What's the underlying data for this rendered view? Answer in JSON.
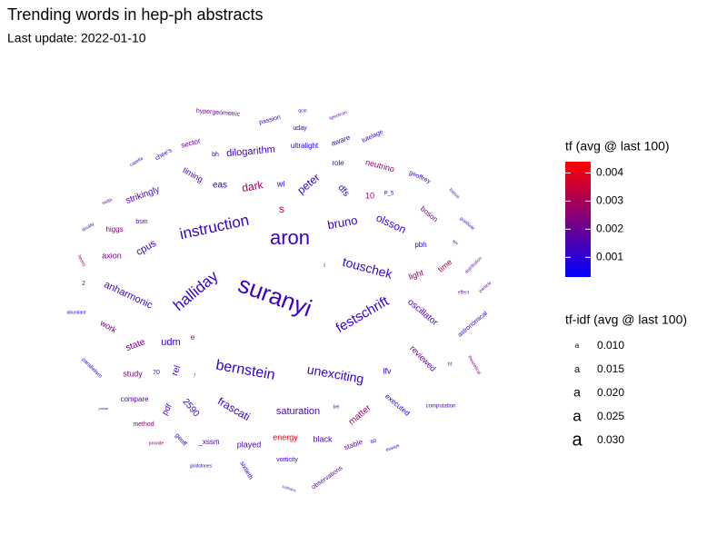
{
  "chart_data": {
    "type": "wordcloud",
    "title": "Trending words in hep-ph abstracts",
    "subtitle": "Last update: 2022-01-10",
    "color_legend": {
      "title": "tf (avg @ last 100)",
      "lim": [
        0.0003,
        0.0044
      ],
      "ticks": [
        0.001,
        0.002,
        0.003,
        0.004
      ],
      "low": "#0000ff",
      "high": "#ff0000"
    },
    "size_legend": {
      "title": "tf-idf (avg @ last 100)",
      "glyph": "a",
      "values": [
        {
          "value": 0.01,
          "label": "0.010"
        },
        0.015,
        {
          "value": 0.02,
          "label": "0.020"
        },
        0.025,
        {
          "value": 0.03,
          "label": "0.030"
        }
      ]
    },
    "words": [
      {
        "text": "hypergeometric",
        "tf": 0.002,
        "tfidf": 0.0083
      },
      {
        "text": "passion",
        "tf": 0.0012,
        "tfidf": 0.0083
      },
      {
        "text": "qcm",
        "tf": 0.001,
        "tfidf": 0.005
      },
      {
        "text": "spectrum",
        "tf": 0.0018,
        "tfidf": 0.005
      },
      {
        "text": "uday",
        "tf": 0.0008,
        "tfidf": 0.0083
      },
      {
        "text": "ultralight",
        "tf": 0.0008,
        "tfidf": 0.01
      },
      {
        "text": "aware",
        "tf": 0.0012,
        "tfidf": 0.01
      },
      {
        "text": "tutelage",
        "tf": 0.0012,
        "tfidf": 0.0083
      },
      {
        "text": "sector",
        "tf": 0.002,
        "tfidf": 0.01
      },
      {
        "text": "bh",
        "tf": 0.0015,
        "tfidf": 0.0083
      },
      {
        "text": "dilogarithm",
        "tf": 0.0012,
        "tfidf": 0.015
      },
      {
        "text": "chee's",
        "tf": 0.0012,
        "tfidf": 0.0083
      },
      {
        "text": "capella",
        "tf": 0.0012,
        "tfidf": 0.005
      },
      {
        "text": "role",
        "tf": 0.0015,
        "tfidf": 0.01
      },
      {
        "text": "neutrino",
        "tf": 0.0025,
        "tfidf": 0.0117
      },
      {
        "text": "geoffrey",
        "tf": 0.0012,
        "tfidf": 0.0083
      },
      {
        "text": "timing",
        "tf": 0.0015,
        "tfidf": 0.0117
      },
      {
        "text": "eas",
        "tf": 0.0008,
        "tfidf": 0.0133
      },
      {
        "text": "dark",
        "tf": 0.0028,
        "tfidf": 0.0167
      },
      {
        "text": "wl",
        "tf": 0.0008,
        "tfidf": 0.0117
      },
      {
        "text": "peter",
        "tf": 0.0012,
        "tfidf": 0.0167
      },
      {
        "text": "dfs",
        "tf": 0.0012,
        "tfidf": 0.0133
      },
      {
        "text": "10",
        "tf": 0.0028,
        "tfidf": 0.0117
      },
      {
        "text": "P_5",
        "tf": 0.0008,
        "tfidf": 0.0067
      },
      {
        "text": "bonus",
        "tf": 0.0012,
        "tfidf": 0.005
      },
      {
        "text": "strikingly",
        "tf": 0.0015,
        "tfidf": 0.0133
      },
      {
        "text": "width",
        "tf": 0.0018,
        "tfidf": 0.005
      },
      {
        "text": "s",
        "tf": 0.0035,
        "tfidf": 0.0167
      },
      {
        "text": "boson",
        "tf": 0.002,
        "tfidf": 0.01
      },
      {
        "text": "gratitude",
        "tf": 0.0012,
        "tfidf": 0.005
      },
      {
        "text": "doubly",
        "tf": 0.0015,
        "tfidf": 0.005
      },
      {
        "text": "higgs",
        "tf": 0.0025,
        "tfidf": 0.01
      },
      {
        "text": "bsm",
        "tf": 0.0015,
        "tfidf": 0.0083
      },
      {
        "text": "instruction",
        "tf": 0.0012,
        "tfidf": 0.025
      },
      {
        "text": "aron",
        "tf": 0.0012,
        "tfidf": 0.0333
      },
      {
        "text": "bruno",
        "tf": 0.0012,
        "tfidf": 0.0183
      },
      {
        "text": "olsson",
        "tf": 0.0012,
        "tfidf": 0.0167
      },
      {
        "text": "tev",
        "tf": 0.0018,
        "tfidf": 0.005
      },
      {
        "text": "cpus",
        "tf": 0.0012,
        "tfidf": 0.015
      },
      {
        "text": "axion",
        "tf": 0.0022,
        "tfidf": 0.0117
      },
      {
        "text": "pbh",
        "tf": 0.0012,
        "tfidf": 0.01
      },
      {
        "text": "heavy",
        "tf": 0.0025,
        "tfidf": 0.005
      },
      {
        "text": "time",
        "tf": 0.003,
        "tfidf": 0.0117
      },
      {
        "text": "distribution",
        "tf": 0.0018,
        "tfidf": 0.005
      },
      {
        "text": "i",
        "tf": 0.0025,
        "tfidf": 0.0083
      },
      {
        "text": "touschek",
        "tf": 0.0012,
        "tfidf": 0.02
      },
      {
        "text": "light",
        "tf": 0.0025,
        "tfidf": 0.0117
      },
      {
        "text": "effect",
        "tf": 0.0018,
        "tfidf": 0.005
      },
      {
        "text": "particle",
        "tf": 0.0018,
        "tfidf": 0.005
      },
      {
        "text": "2",
        "tf": 0.0025,
        "tfidf": 0.0083
      },
      {
        "text": "halliday",
        "tf": 0.0012,
        "tfidf": 0.025
      },
      {
        "text": "suranyi",
        "tf": 0.0012,
        "tfidf": 0.04
      },
      {
        "text": "anharmonic",
        "tf": 0.0012,
        "tfidf": 0.015
      },
      {
        "text": "abundant",
        "tf": 0.0008,
        "tfidf": 0.005
      },
      {
        "text": "festschrift",
        "tf": 0.0012,
        "tfidf": 0.0217
      },
      {
        "text": "oscillator",
        "tf": 0.0015,
        "tfidf": 0.0133
      },
      {
        "text": "astronomical",
        "tf": 0.0012,
        "tfidf": 0.0083
      },
      {
        "text": "work",
        "tf": 0.0022,
        "tfidf": 0.0117
      },
      {
        "text": "e",
        "tf": 0.0025,
        "tfidf": 0.01
      },
      {
        "text": "udm",
        "tf": 0.0012,
        "tfidf": 0.015
      },
      {
        "text": "state",
        "tf": 0.0022,
        "tfidf": 0.0133
      },
      {
        "text": "reviewed",
        "tf": 0.0018,
        "tfidf": 0.0117
      },
      {
        "text": "parallelism",
        "tf": 0.0008,
        "tfidf": 0.0067
      },
      {
        "text": "bernstein",
        "tf": 0.0012,
        "tfidf": 0.0233
      },
      {
        "text": "unexciting",
        "tf": 0.0012,
        "tfidf": 0.02
      },
      {
        "text": "lfv",
        "tf": 0.0012,
        "tfidf": 0.0117
      },
      {
        "text": "study",
        "tf": 0.0025,
        "tfidf": 0.0117
      },
      {
        "text": "70",
        "tf": 0.0015,
        "tfidf": 0.0083
      },
      {
        "text": "rel",
        "tf": 0.0012,
        "tfidf": 0.0133
      },
      {
        "text": "7",
        "tf": 0.0012,
        "tfidf": 0.005
      },
      {
        "text": "theoretical",
        "tf": 0.0025,
        "tfidf": 0.005
      },
      {
        "text": "hf",
        "tf": 0.0012,
        "tfidf": 0.005
      },
      {
        "text": "compare",
        "tf": 0.0018,
        "tfidf": 0.01
      },
      {
        "text": "pdf",
        "tf": 0.0015,
        "tfidf": 0.0117
      },
      {
        "text": "2590",
        "tf": 0.0012,
        "tfidf": 0.0133
      },
      {
        "text": "frascati",
        "tf": 0.0012,
        "tfidf": 0.0167
      },
      {
        "text": "saturation",
        "tf": 0.0015,
        "tfidf": 0.015
      },
      {
        "text": "bel",
        "tf": 0.0018,
        "tfidf": 0.005
      },
      {
        "text": "matter",
        "tf": 0.0028,
        "tfidf": 0.0133
      },
      {
        "text": "executed",
        "tf": 0.0008,
        "tfidf": 0.01
      },
      {
        "text": "computation",
        "tf": 0.0015,
        "tfidf": 0.0067
      },
      {
        "text": "pulsar",
        "tf": 0.0012,
        "tfidf": 0.0033
      },
      {
        "text": "method",
        "tf": 0.0025,
        "tfidf": 0.0083
      },
      {
        "text": "energy",
        "tf": 0.0042,
        "tfidf": 0.0117
      },
      {
        "text": "black",
        "tf": 0.0015,
        "tfidf": 0.0117
      },
      {
        "text": "stable",
        "tf": 0.0018,
        "tfidf": 0.01
      },
      {
        "text": "60",
        "tf": 0.0012,
        "tfidf": 0.0067
      },
      {
        "text": "essays",
        "tf": 0.0008,
        "tfidf": 0.005
      },
      {
        "text": "provide",
        "tf": 0.0025,
        "tfidf": 0.005
      },
      {
        "text": "geoff",
        "tf": 0.0008,
        "tfidf": 0.0083
      },
      {
        "text": "_xssm",
        "tf": 0.0012,
        "tfidf": 0.01
      },
      {
        "text": "played",
        "tf": 0.0015,
        "tfidf": 0.0117
      },
      {
        "text": "vorticity",
        "tf": 0.0012,
        "tfidf": 0.0083
      },
      {
        "text": "goldstones",
        "tf": 0.0008,
        "tfidf": 0.005
      },
      {
        "text": "sixtieth",
        "tf": 0.0008,
        "tfidf": 0.0083
      },
      {
        "text": "subhalos",
        "tf": 0.0012,
        "tfidf": 0.0033
      },
      {
        "text": "observations",
        "tf": 0.0018,
        "tfidf": 0.0083
      }
    ]
  }
}
